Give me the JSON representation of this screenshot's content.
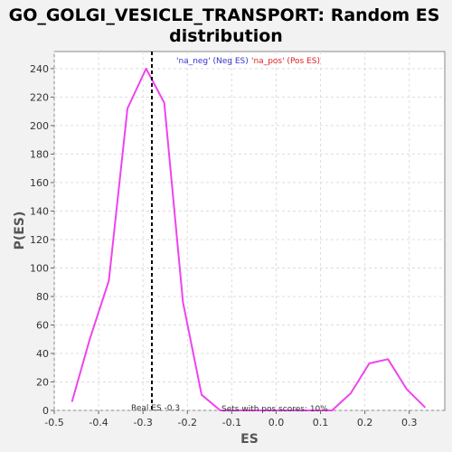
{
  "chart_data": {
    "type": "line",
    "title_lines": [
      "GO_GOLGI_VESICLE_TRANSPORT: Random ES",
      "distribution"
    ],
    "xlabel": "ES",
    "ylabel": "P(ES)",
    "xlim": [
      -0.5,
      0.38
    ],
    "ylim": [
      0,
      252
    ],
    "xticks": [
      -0.5,
      -0.4,
      -0.3,
      -0.2,
      -0.1,
      0.0,
      0.1,
      0.2,
      0.3
    ],
    "xtick_labels": [
      "-0.5",
      "-0.4",
      "-0.3",
      "-0.2",
      "-0.1",
      "0.0",
      "0.1",
      "0.2",
      "0.3"
    ],
    "yticks": [
      0,
      20,
      40,
      60,
      80,
      100,
      120,
      140,
      160,
      180,
      200,
      220,
      240
    ],
    "ytick_labels": [
      "0",
      "20",
      "40",
      "60",
      "80",
      "100",
      "120",
      "140",
      "160",
      "180",
      "200",
      "220",
      "240"
    ],
    "grid": true,
    "series": [
      {
        "name": "",
        "color": "#ee44ee",
        "x": [
          -0.46,
          -0.42,
          -0.377,
          -0.335,
          -0.293,
          -0.252,
          -0.21,
          -0.168,
          -0.126,
          -0.084,
          0.0,
          0.126,
          0.168,
          0.21,
          0.252,
          0.294,
          0.336
        ],
        "y": [
          6,
          50,
          91,
          212,
          240,
          216,
          76,
          11,
          0,
          0,
          0,
          0,
          12,
          33,
          36,
          15,
          2
        ]
      }
    ],
    "real_es_line": {
      "x": -0.28,
      "color": "#000000"
    },
    "legend": {
      "position": "top",
      "entries": [
        {
          "label": "'na_neg' (Neg ES)",
          "color": "#3333cc"
        },
        {
          "label": "'na_pos' (Pos ES)",
          "color": "#dd2222"
        }
      ]
    },
    "annotations": {
      "real_es": "Real ES -0.3",
      "pos_scores": "Sets with pos scores: 10%"
    }
  }
}
